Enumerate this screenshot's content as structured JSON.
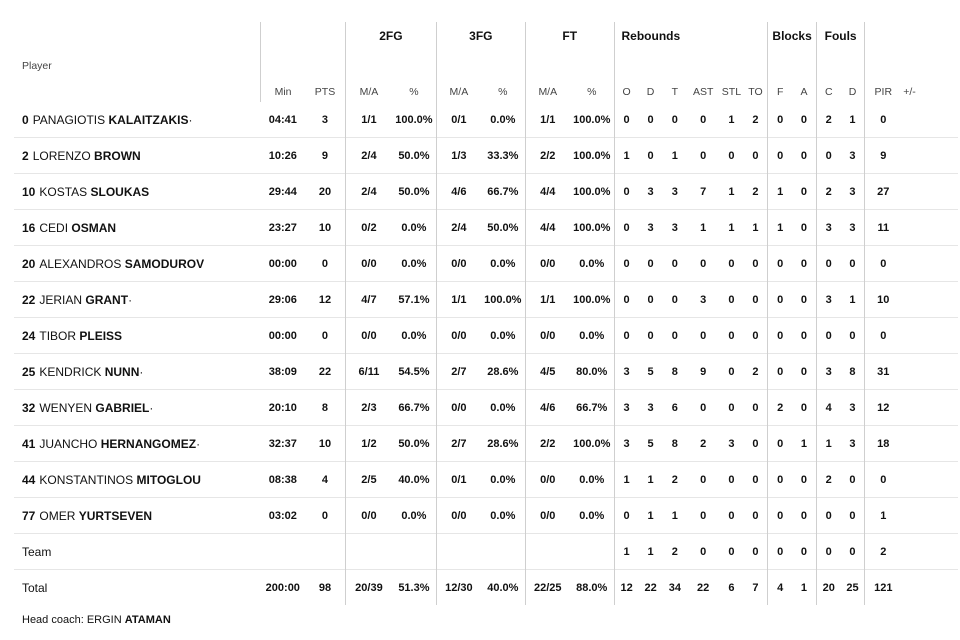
{
  "groups": {
    "fg2": "2FG",
    "fg3": "3FG",
    "ft": "FT",
    "reb": "Rebounds",
    "blk": "Blocks",
    "fouls": "Fouls"
  },
  "columns": {
    "player": "Player",
    "min": "Min",
    "pts": "PTS",
    "fg2_ma": "M/A",
    "fg2_pct": "%",
    "fg3_ma": "M/A",
    "fg3_pct": "%",
    "ft_ma": "M/A",
    "ft_pct": "%",
    "o": "O",
    "d": "D",
    "t": "T",
    "ast": "AST",
    "stl": "STL",
    "to": "TO",
    "f": "F",
    "a": "A",
    "c": "C",
    "fd": "D",
    "pir": "PIR",
    "pm": "+/-"
  },
  "rows": [
    {
      "num": "0",
      "first": "PANAGIOTIS",
      "last": "KALAITZAKIS",
      "star": "·",
      "min": "04:41",
      "pts": "3",
      "fg2": "1/1",
      "fg2p": "100.0%",
      "fg3": "0/1",
      "fg3p": "0.0%",
      "ft": "1/1",
      "ftp": "100.0%",
      "o": "0",
      "d": "0",
      "t": "0",
      "ast": "0",
      "stl": "1",
      "to": "2",
      "f": "0",
      "a": "0",
      "c": "2",
      "fd": "1",
      "pir": "0",
      "pm": ""
    },
    {
      "num": "2",
      "first": "LORENZO",
      "last": "BROWN",
      "star": "",
      "min": "10:26",
      "pts": "9",
      "fg2": "2/4",
      "fg2p": "50.0%",
      "fg3": "1/3",
      "fg3p": "33.3%",
      "ft": "2/2",
      "ftp": "100.0%",
      "o": "1",
      "d": "0",
      "t": "1",
      "ast": "0",
      "stl": "0",
      "to": "0",
      "f": "0",
      "a": "0",
      "c": "0",
      "fd": "3",
      "pir": "9",
      "pm": ""
    },
    {
      "num": "10",
      "first": "KOSTAS",
      "last": "SLOUKAS",
      "star": "",
      "min": "29:44",
      "pts": "20",
      "fg2": "2/4",
      "fg2p": "50.0%",
      "fg3": "4/6",
      "fg3p": "66.7%",
      "ft": "4/4",
      "ftp": "100.0%",
      "o": "0",
      "d": "3",
      "t": "3",
      "ast": "7",
      "stl": "1",
      "to": "2",
      "f": "1",
      "a": "0",
      "c": "2",
      "fd": "3",
      "pir": "27",
      "pm": ""
    },
    {
      "num": "16",
      "first": "CEDI",
      "last": "OSMAN",
      "star": "",
      "min": "23:27",
      "pts": "10",
      "fg2": "0/2",
      "fg2p": "0.0%",
      "fg3": "2/4",
      "fg3p": "50.0%",
      "ft": "4/4",
      "ftp": "100.0%",
      "o": "0",
      "d": "3",
      "t": "3",
      "ast": "1",
      "stl": "1",
      "to": "1",
      "f": "1",
      "a": "0",
      "c": "3",
      "fd": "3",
      "pir": "11",
      "pm": ""
    },
    {
      "num": "20",
      "first": "ALEXANDROS",
      "last": "SAMODUROV",
      "star": "",
      "min": "00:00",
      "pts": "0",
      "fg2": "0/0",
      "fg2p": "0.0%",
      "fg3": "0/0",
      "fg3p": "0.0%",
      "ft": "0/0",
      "ftp": "0.0%",
      "o": "0",
      "d": "0",
      "t": "0",
      "ast": "0",
      "stl": "0",
      "to": "0",
      "f": "0",
      "a": "0",
      "c": "0",
      "fd": "0",
      "pir": "0",
      "pm": ""
    },
    {
      "num": "22",
      "first": "JERIAN",
      "last": "GRANT",
      "star": "·",
      "min": "29:06",
      "pts": "12",
      "fg2": "4/7",
      "fg2p": "57.1%",
      "fg3": "1/1",
      "fg3p": "100.0%",
      "ft": "1/1",
      "ftp": "100.0%",
      "o": "0",
      "d": "0",
      "t": "0",
      "ast": "3",
      "stl": "0",
      "to": "0",
      "f": "0",
      "a": "0",
      "c": "3",
      "fd": "1",
      "pir": "10",
      "pm": ""
    },
    {
      "num": "24",
      "first": "TIBOR",
      "last": "PLEISS",
      "star": "",
      "min": "00:00",
      "pts": "0",
      "fg2": "0/0",
      "fg2p": "0.0%",
      "fg3": "0/0",
      "fg3p": "0.0%",
      "ft": "0/0",
      "ftp": "0.0%",
      "o": "0",
      "d": "0",
      "t": "0",
      "ast": "0",
      "stl": "0",
      "to": "0",
      "f": "0",
      "a": "0",
      "c": "0",
      "fd": "0",
      "pir": "0",
      "pm": ""
    },
    {
      "num": "25",
      "first": "KENDRICK",
      "last": "NUNN",
      "star": "·",
      "min": "38:09",
      "pts": "22",
      "fg2": "6/11",
      "fg2p": "54.5%",
      "fg3": "2/7",
      "fg3p": "28.6%",
      "ft": "4/5",
      "ftp": "80.0%",
      "o": "3",
      "d": "5",
      "t": "8",
      "ast": "9",
      "stl": "0",
      "to": "2",
      "f": "0",
      "a": "0",
      "c": "3",
      "fd": "8",
      "pir": "31",
      "pm": ""
    },
    {
      "num": "32",
      "first": "WENYEN",
      "last": "GABRIEL",
      "star": "·",
      "min": "20:10",
      "pts": "8",
      "fg2": "2/3",
      "fg2p": "66.7%",
      "fg3": "0/0",
      "fg3p": "0.0%",
      "ft": "4/6",
      "ftp": "66.7%",
      "o": "3",
      "d": "3",
      "t": "6",
      "ast": "0",
      "stl": "0",
      "to": "0",
      "f": "2",
      "a": "0",
      "c": "4",
      "fd": "3",
      "pir": "12",
      "pm": ""
    },
    {
      "num": "41",
      "first": "JUANCHO",
      "last": "HERNANGOMEZ",
      "star": "·",
      "min": "32:37",
      "pts": "10",
      "fg2": "1/2",
      "fg2p": "50.0%",
      "fg3": "2/7",
      "fg3p": "28.6%",
      "ft": "2/2",
      "ftp": "100.0%",
      "o": "3",
      "d": "5",
      "t": "8",
      "ast": "2",
      "stl": "3",
      "to": "0",
      "f": "0",
      "a": "1",
      "c": "1",
      "fd": "3",
      "pir": "18",
      "pm": ""
    },
    {
      "num": "44",
      "first": "KONSTANTINOS",
      "last": "MITOGLOU",
      "star": "",
      "min": "08:38",
      "pts": "4",
      "fg2": "2/5",
      "fg2p": "40.0%",
      "fg3": "0/1",
      "fg3p": "0.0%",
      "ft": "0/0",
      "ftp": "0.0%",
      "o": "1",
      "d": "1",
      "t": "2",
      "ast": "0",
      "stl": "0",
      "to": "0",
      "f": "0",
      "a": "0",
      "c": "2",
      "fd": "0",
      "pir": "0",
      "pm": ""
    },
    {
      "num": "77",
      "first": "OMER",
      "last": "YURTSEVEN",
      "star": "",
      "min": "03:02",
      "pts": "0",
      "fg2": "0/0",
      "fg2p": "0.0%",
      "fg3": "0/0",
      "fg3p": "0.0%",
      "ft": "0/0",
      "ftp": "0.0%",
      "o": "0",
      "d": "1",
      "t": "1",
      "ast": "0",
      "stl": "0",
      "to": "0",
      "f": "0",
      "a": "0",
      "c": "0",
      "fd": "0",
      "pir": "1",
      "pm": ""
    }
  ],
  "team": {
    "label": "Team",
    "min": "",
    "pts": "",
    "fg2": "",
    "fg2p": "",
    "fg3": "",
    "fg3p": "",
    "ft": "",
    "ftp": "",
    "o": "1",
    "d": "1",
    "t": "2",
    "ast": "0",
    "stl": "0",
    "to": "0",
    "f": "0",
    "a": "0",
    "c": "0",
    "fd": "0",
    "pir": "2",
    "pm": ""
  },
  "total": {
    "label": "Total",
    "min": "200:00",
    "pts": "98",
    "fg2": "20/39",
    "fg2p": "51.3%",
    "fg3": "12/30",
    "fg3p": "40.0%",
    "ft": "22/25",
    "ftp": "88.0%",
    "o": "12",
    "d": "22",
    "t": "34",
    "ast": "22",
    "stl": "6",
    "to": "7",
    "f": "4",
    "a": "1",
    "c": "20",
    "fd": "25",
    "pir": "121",
    "pm": ""
  },
  "coach": {
    "label": "Head coach:",
    "first": "ERGIN",
    "last": "ATAMAN"
  }
}
